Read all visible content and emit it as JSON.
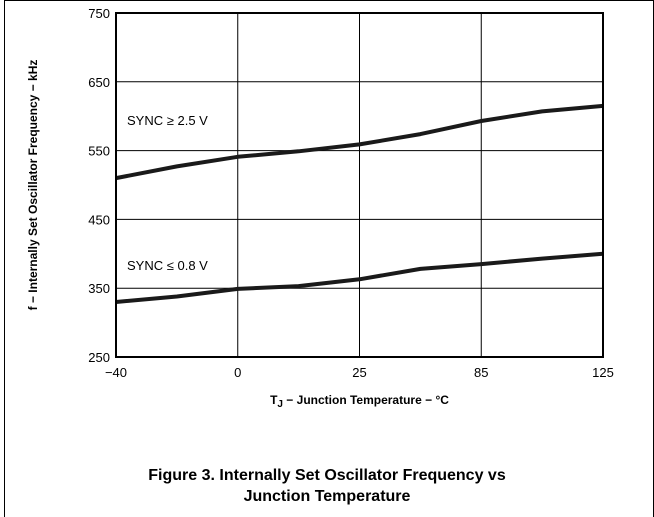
{
  "chart_data": {
    "type": "line",
    "title": "",
    "xlabel": "T",
    "xlabel_sub": "J",
    "xlabel_rest": " − Junction Temperature − °C",
    "ylabel": "f − Internally Set Oscillator Frequency − kHz",
    "x_ticks": [
      "−40",
      "0",
      "25",
      "85",
      "125"
    ],
    "y_ticks": [
      "750",
      "650",
      "550",
      "450",
      "350",
      "250"
    ],
    "xlim": [
      0,
      4
    ],
    "ylim": [
      250,
      750
    ],
    "grid": true,
    "series": [
      {
        "name": "SYNC ≥ 2.5 V",
        "x": [
          0,
          0.5,
          1,
          1.5,
          2,
          2.5,
          3,
          3.5,
          4
        ],
        "y": [
          510,
          527,
          541,
          549,
          559,
          574,
          593,
          607,
          615
        ]
      },
      {
        "name": "SYNC ≤ 0.8 V",
        "x": [
          0,
          0.5,
          1,
          1.5,
          2,
          2.5,
          3,
          3.5,
          4
        ],
        "y": [
          330,
          338,
          349,
          353,
          363,
          378,
          385,
          393,
          400
        ]
      }
    ]
  },
  "caption": {
    "line1": "Figure 3. Internally Set Oscillator Frequency vs",
    "line2": "Junction Temperature"
  }
}
